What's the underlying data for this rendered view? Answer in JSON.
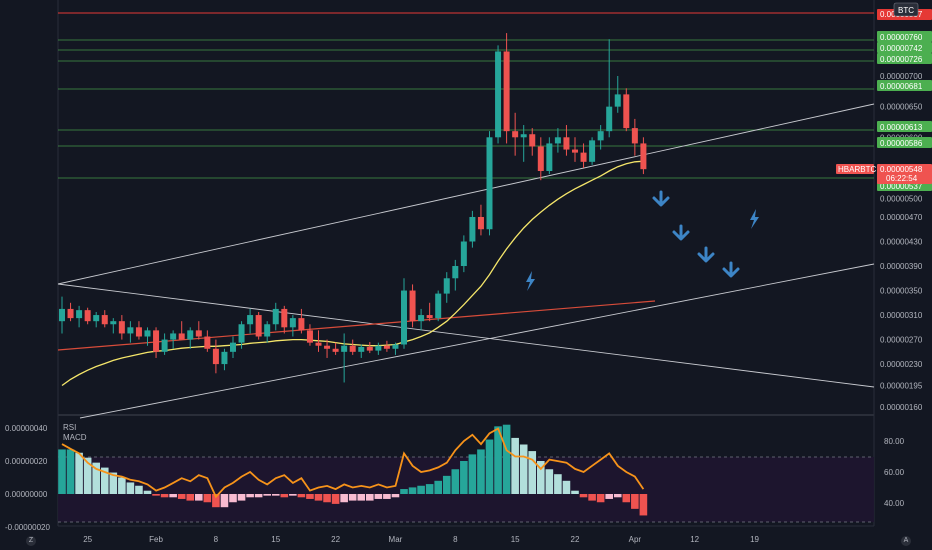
{
  "symbol_badge": "BTC",
  "pair_label": "HBARBTC",
  "countdown": "06:22:54",
  "colors": {
    "background": "#131722",
    "up": "#26a69a",
    "down": "#ef5350",
    "sma_fast": "#f5e66a",
    "sma_slow": "#d84c3a",
    "level_green": "#4caf50",
    "level_red": "#e53935",
    "trend_line": "#c7c9cf",
    "arrow_blue": "#3d85c6",
    "rsi_line": "#f7931a",
    "macd_pos_strong": "#26a69a",
    "macd_pos_weak": "#b2dfdb",
    "macd_neg_strong": "#ef5350",
    "macd_neg_weak": "#f8bbd0"
  },
  "price_labels": {
    "level_red_top": "0.00000807",
    "levels_green": [
      "0.00000760",
      "0.00000742",
      "0.00000726",
      "0.00000681",
      "0.00000613",
      "0.00000586",
      "0.00000537"
    ],
    "current": "0.00000548"
  },
  "indicator_labels": {
    "rsi": "RSI",
    "macd": "MACD"
  },
  "corner_left": "Z",
  "corner_right": "A",
  "chart_data": [
    {
      "type": "candlestick",
      "title": "HBARBTC",
      "yticks": [
        "0.00000700",
        "0.00000650",
        "0.00000600",
        "0.00000500",
        "0.00000470",
        "0.00000430",
        "0.00000390",
        "0.00000350",
        "0.00000310",
        "0.00000270",
        "0.00000230",
        "0.00000195",
        "0.00000160"
      ],
      "ytick_values": [
        7e-06,
        6.5e-06,
        6e-06,
        5e-06,
        4.7e-06,
        4.3e-06,
        3.9e-06,
        3.5e-06,
        3.1e-06,
        2.7e-06,
        2.3e-06,
        1.95e-06,
        1.6e-06
      ],
      "xticks": [
        "25",
        "Feb",
        "8",
        "15",
        "22",
        "Mar",
        "8",
        "15",
        "22",
        "Apr",
        "12",
        "19"
      ],
      "xtick_index": [
        3,
        11,
        18,
        25,
        32,
        39,
        46,
        53,
        60,
        67,
        74,
        81
      ],
      "candles": [
        [
          3e-06,
          3.4e-06,
          2.8e-06,
          3.2e-06
        ],
        [
          3.2e-06,
          3.3e-06,
          3e-06,
          3.05e-06
        ],
        [
          3.05e-06,
          3.25e-06,
          2.9e-06,
          3.18e-06
        ],
        [
          3.18e-06,
          3.22e-06,
          2.95e-06,
          3e-06
        ],
        [
          3e-06,
          3.15e-06,
          2.9e-06,
          3.1e-06
        ],
        [
          3.1e-06,
          3.18e-06,
          2.9e-06,
          2.95e-06
        ],
        [
          2.95e-06,
          3.05e-06,
          2.8e-06,
          3e-06
        ],
        [
          3e-06,
          3.1e-06,
          2.7e-06,
          2.8e-06
        ],
        [
          2.8e-06,
          3e-06,
          2.65e-06,
          2.9e-06
        ],
        [
          2.9e-06,
          3e-06,
          2.7e-06,
          2.75e-06
        ],
        [
          2.75e-06,
          2.9e-06,
          2.6e-06,
          2.85e-06
        ],
        [
          2.85e-06,
          2.9e-06,
          2.4e-06,
          2.5e-06
        ],
        [
          2.5e-06,
          2.8e-06,
          2.45e-06,
          2.7e-06
        ],
        [
          2.7e-06,
          2.85e-06,
          2.55e-06,
          2.8e-06
        ],
        [
          2.8e-06,
          3e-06,
          2.7e-06,
          2.7e-06
        ],
        [
          2.7e-06,
          2.9e-06,
          2.55e-06,
          2.85e-06
        ],
        [
          2.85e-06,
          3e-06,
          2.7e-06,
          2.75e-06
        ],
        [
          2.75e-06,
          2.85e-06,
          2.5e-06,
          2.55e-06
        ],
        [
          2.55e-06,
          2.7e-06,
          2.15e-06,
          2.3e-06
        ],
        [
          2.3e-06,
          2.55e-06,
          2.2e-06,
          2.5e-06
        ],
        [
          2.5e-06,
          2.75e-06,
          2.4e-06,
          2.65e-06
        ],
        [
          2.65e-06,
          3e-06,
          2.55e-06,
          2.95e-06
        ],
        [
          2.95e-06,
          3.2e-06,
          2.8e-06,
          3.1e-06
        ],
        [
          3.1e-06,
          3.15e-06,
          2.7e-06,
          2.75e-06
        ],
        [
          2.75e-06,
          3e-06,
          2.65e-06,
          2.95e-06
        ],
        [
          2.95e-06,
          3.3e-06,
          2.85e-06,
          3.2e-06
        ],
        [
          3.2e-06,
          3.25e-06,
          2.8e-06,
          2.9e-06
        ],
        [
          2.9e-06,
          3.1e-06,
          2.75e-06,
          3.05e-06
        ],
        [
          3.05e-06,
          3.2e-06,
          2.8e-06,
          2.85e-06
        ],
        [
          2.85e-06,
          2.95e-06,
          2.6e-06,
          2.65e-06
        ],
        [
          2.65e-06,
          2.85e-06,
          2.5e-06,
          2.6e-06
        ],
        [
          2.6e-06,
          2.7e-06,
          2.4e-06,
          2.55e-06
        ],
        [
          2.55e-06,
          2.65e-06,
          2.45e-06,
          2.5e-06
        ],
        [
          2.5e-06,
          2.8e-06,
          2e-06,
          2.6e-06
        ],
        [
          2.6e-06,
          2.7e-06,
          2.45e-06,
          2.5e-06
        ],
        [
          2.5e-06,
          2.62e-06,
          2.4e-06,
          2.58e-06
        ],
        [
          2.58e-06,
          2.66e-06,
          2.48e-06,
          2.52e-06
        ],
        [
          2.52e-06,
          2.65e-06,
          2.45e-06,
          2.6e-06
        ],
        [
          2.6e-06,
          2.68e-06,
          2.5e-06,
          2.55e-06
        ],
        [
          2.55e-06,
          2.65e-06,
          2.45e-06,
          2.62e-06
        ],
        [
          2.62e-06,
          3.7e-06,
          2.55e-06,
          3.5e-06
        ],
        [
          3.5e-06,
          3.6e-06,
          2.9e-06,
          3e-06
        ],
        [
          3e-06,
          3.2e-06,
          2.85e-06,
          3.1e-06
        ],
        [
          3.1e-06,
          3.3e-06,
          3e-06,
          3.05e-06
        ],
        [
          3.05e-06,
          3.5e-06,
          3e-06,
          3.45e-06
        ],
        [
          3.45e-06,
          3.8e-06,
          3.3e-06,
          3.7e-06
        ],
        [
          3.7e-06,
          4e-06,
          3.5e-06,
          3.9e-06
        ],
        [
          3.9e-06,
          4.4e-06,
          3.8e-06,
          4.3e-06
        ],
        [
          4.3e-06,
          4.8e-06,
          4.2e-06,
          4.7e-06
        ],
        [
          4.7e-06,
          4.9e-06,
          4.4e-06,
          4.5e-06
        ],
        [
          4.5e-06,
          6.1e-06,
          4.4e-06,
          6e-06
        ],
        [
          6e-06,
          7.5e-06,
          5.9e-06,
          7.4e-06
        ],
        [
          7.4e-06,
          7.7e-06,
          5.9e-06,
          6.1e-06
        ],
        [
          6.1e-06,
          6.4e-06,
          5.7e-06,
          6e-06
        ],
        [
          6e-06,
          6.2e-06,
          5.6e-06,
          6.05e-06
        ],
        [
          6.05e-06,
          6.15e-06,
          5.7e-06,
          5.85e-06
        ],
        [
          5.85e-06,
          6e-06,
          5.3e-06,
          5.45e-06
        ],
        [
          5.45e-06,
          6e-06,
          5.4e-06,
          5.9e-06
        ],
        [
          5.9e-06,
          6.15e-06,
          5.75e-06,
          6e-06
        ],
        [
          6e-06,
          6.2e-06,
          5.7e-06,
          5.8e-06
        ],
        [
          5.8e-06,
          6e-06,
          5.6e-06,
          5.75e-06
        ],
        [
          5.75e-06,
          5.9e-06,
          5.5e-06,
          5.6e-06
        ],
        [
          5.6e-06,
          6e-06,
          5.55e-06,
          5.95e-06
        ],
        [
          5.95e-06,
          6.2e-06,
          5.8e-06,
          6.1e-06
        ],
        [
          6.1e-06,
          7.6e-06,
          6e-06,
          6.5e-06
        ],
        [
          6.5e-06,
          7e-06,
          6.4e-06,
          6.7e-06
        ],
        [
          6.7e-06,
          6.8e-06,
          6.1e-06,
          6.15e-06
        ],
        [
          6.15e-06,
          6.3e-06,
          5.7e-06,
          5.9e-06
        ],
        [
          5.9e-06,
          6e-06,
          5.4e-06,
          5.48e-06
        ]
      ],
      "sma_fast": [
        1.95e-06,
        2.05e-06,
        2.13e-06,
        2.2e-06,
        2.26e-06,
        2.31e-06,
        2.36e-06,
        2.4e-06,
        2.43e-06,
        2.46e-06,
        2.49e-06,
        2.51e-06,
        2.52e-06,
        2.54e-06,
        2.56e-06,
        2.57e-06,
        2.58e-06,
        2.59e-06,
        2.59e-06,
        2.6e-06,
        2.61e-06,
        2.62e-06,
        2.64e-06,
        2.65e-06,
        2.66e-06,
        2.68e-06,
        2.69e-06,
        2.7e-06,
        2.7e-06,
        2.69e-06,
        2.68e-06,
        2.67e-06,
        2.65e-06,
        2.63e-06,
        2.62e-06,
        2.61e-06,
        2.6e-06,
        2.6e-06,
        2.61e-06,
        2.62e-06,
        2.66e-06,
        2.7e-06,
        2.75e-06,
        2.81e-06,
        2.9e-06,
        3e-06,
        3.13e-06,
        3.27e-06,
        3.42e-06,
        3.57e-06,
        3.76e-06,
        3.98e-06,
        4.18e-06,
        4.36e-06,
        4.52e-06,
        4.66e-06,
        4.78e-06,
        4.89e-06,
        4.99e-06,
        5.08e-06,
        5.16e-06,
        5.23e-06,
        5.3e-06,
        5.37e-06,
        5.45e-06,
        5.52e-06,
        5.57e-06,
        5.6e-06,
        5.61e-06
      ],
      "sma_slow_start": 2.65e-06,
      "sma_slow_end": 3.25e-06,
      "macd": [
        2.7e-07,
        2.7e-07,
        2.5e-07,
        2.2e-07,
        1.9e-07,
        1.6e-07,
        1.3e-07,
        1e-07,
        7e-08,
        5e-08,
        2e-08,
        -1e-08,
        -2e-08,
        -2e-08,
        -3e-08,
        -4e-08,
        -4e-08,
        -5e-08,
        -8e-08,
        -8e-08,
        -5e-08,
        -4e-08,
        -2e-08,
        -2e-08,
        -1e-08,
        -1e-08,
        -2e-08,
        -1e-08,
        -2e-08,
        -3e-08,
        -4e-08,
        -5e-08,
        -6e-08,
        -5e-08,
        -4e-08,
        -4e-08,
        -4e-08,
        -3e-08,
        -3e-08,
        -2e-08,
        3e-08,
        4e-08,
        5e-08,
        6e-08,
        8e-08,
        1.1e-07,
        1.5e-07,
        2e-07,
        2.4e-07,
        2.7e-07,
        3.3e-07,
        4.1e-07,
        4.2e-07,
        3.4e-07,
        3e-07,
        2.6e-07,
        2e-07,
        1.5e-07,
        1.2e-07,
        8e-08,
        2e-08,
        -2e-08,
        -4e-08,
        -5e-08,
        -3e-08,
        -2e-08,
        -5e-08,
        -9e-08,
        -1.3e-07
      ],
      "rsi": [
        78,
        75,
        72,
        66,
        62,
        60,
        58,
        57,
        55,
        54,
        52,
        48,
        50,
        53,
        56,
        54,
        58,
        56,
        44,
        50,
        53,
        57,
        60,
        55,
        52,
        56,
        58,
        53,
        56,
        48,
        50,
        51,
        49,
        52,
        50,
        51,
        50,
        52,
        50,
        51,
        72,
        64,
        60,
        61,
        63,
        66,
        74,
        80,
        84,
        78,
        85,
        88,
        74,
        70,
        70,
        68,
        62,
        68,
        67,
        66,
        62,
        60,
        64,
        68,
        72,
        64,
        60,
        57,
        49
      ],
      "macd_ticks": [
        "0.00000040",
        "0.00000020",
        "0.00000000",
        "-0.00000020"
      ],
      "macd_tick_values": [
        4e-07,
        2e-07,
        0.0,
        -2e-07
      ],
      "rsi_ticks": [
        "80.00",
        "60.00",
        "40.00"
      ],
      "rsi_tick_values": [
        80,
        60,
        40
      ],
      "rsi_bands": [
        70,
        30
      ]
    }
  ]
}
